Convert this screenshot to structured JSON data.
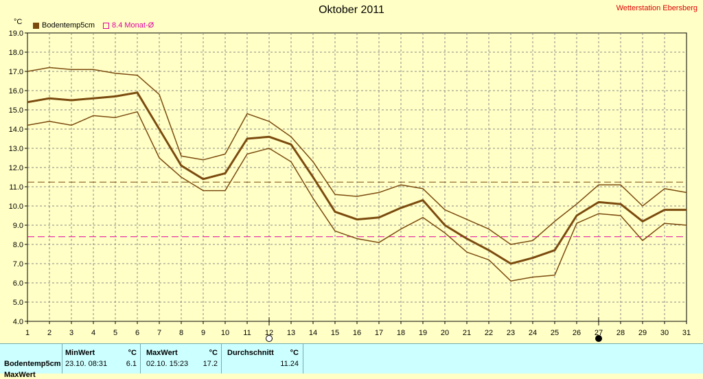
{
  "title": "Oktober 2011",
  "station": "Wetterstation Ebersberg",
  "unit": "°C",
  "legend": [
    {
      "label": "Bodentemp5cm",
      "color": "#7b4a0e"
    },
    {
      "label": "8.4 Monat-Ø",
      "color": "#e000a0"
    }
  ],
  "table": {
    "row_label": "Bodentemp5cm",
    "cut_label": "MaxWert",
    "min_header": "MinWert",
    "max_header": "MaxWert",
    "avg_header": "Durchschnitt",
    "unit_header": "°C",
    "min_date": "23.10.  08:31",
    "min_value": "6.1",
    "max_date": "02.10.  15:23",
    "max_value": "17.2",
    "avg_value": "11.24"
  },
  "chart_data": {
    "type": "line",
    "x": [
      1,
      2,
      3,
      4,
      5,
      6,
      7,
      8,
      9,
      10,
      11,
      12,
      13,
      14,
      15,
      16,
      17,
      18,
      19,
      20,
      21,
      22,
      23,
      24,
      25,
      26,
      27,
      28,
      29,
      30,
      31
    ],
    "ylim": [
      4.0,
      19.0
    ],
    "y_ticks": [
      "4.0",
      "5.0",
      "6.0",
      "7.0",
      "8.0",
      "9.0",
      "10.0",
      "11.0",
      "12.0",
      "13.0",
      "14.0",
      "15.0",
      "16.0",
      "17.0",
      "18.0",
      "19.0"
    ],
    "grid": true,
    "series": [
      {
        "name": "Bodentemp5cm",
        "color": "#7b4a0e",
        "width": 3,
        "values": [
          15.4,
          15.6,
          15.5,
          15.6,
          15.7,
          15.9,
          14.0,
          12.1,
          11.4,
          11.7,
          13.5,
          13.6,
          13.2,
          11.5,
          9.7,
          9.3,
          9.4,
          9.9,
          10.3,
          9.0,
          8.3,
          7.7,
          7.0,
          7.3,
          7.7,
          9.5,
          10.2,
          10.1,
          9.2,
          9.8,
          9.8
        ]
      },
      {
        "role": "max",
        "color": "#7b4a0e",
        "width": 1.5,
        "values": [
          17.0,
          17.2,
          17.1,
          17.1,
          16.9,
          16.8,
          15.8,
          12.6,
          12.4,
          12.7,
          14.8,
          14.4,
          13.6,
          12.3,
          10.6,
          10.5,
          10.7,
          11.1,
          10.9,
          9.8,
          9.3,
          8.8,
          8.0,
          8.2,
          9.2,
          10.1,
          11.1,
          11.1,
          10.0,
          10.9,
          10.7
        ]
      },
      {
        "role": "min",
        "color": "#7b4a0e",
        "width": 1.5,
        "values": [
          14.2,
          14.4,
          14.2,
          14.7,
          14.6,
          14.9,
          12.5,
          11.5,
          10.8,
          10.8,
          12.7,
          13.0,
          12.3,
          10.4,
          8.7,
          8.3,
          8.1,
          8.8,
          9.4,
          8.6,
          7.6,
          7.2,
          6.1,
          6.3,
          6.4,
          9.1,
          9.6,
          9.5,
          8.2,
          9.1,
          9.0
        ]
      }
    ],
    "reference_lines": [
      {
        "value": 11.24,
        "color": "#7b4a0e"
      },
      {
        "value": 8.4,
        "color": "#e000a0"
      }
    ],
    "markers": [
      {
        "x": 12,
        "symbol": "new-moon",
        "fill": "#ffffff"
      },
      {
        "x": 27,
        "symbol": "full-moon",
        "fill": "#000000"
      }
    ]
  }
}
